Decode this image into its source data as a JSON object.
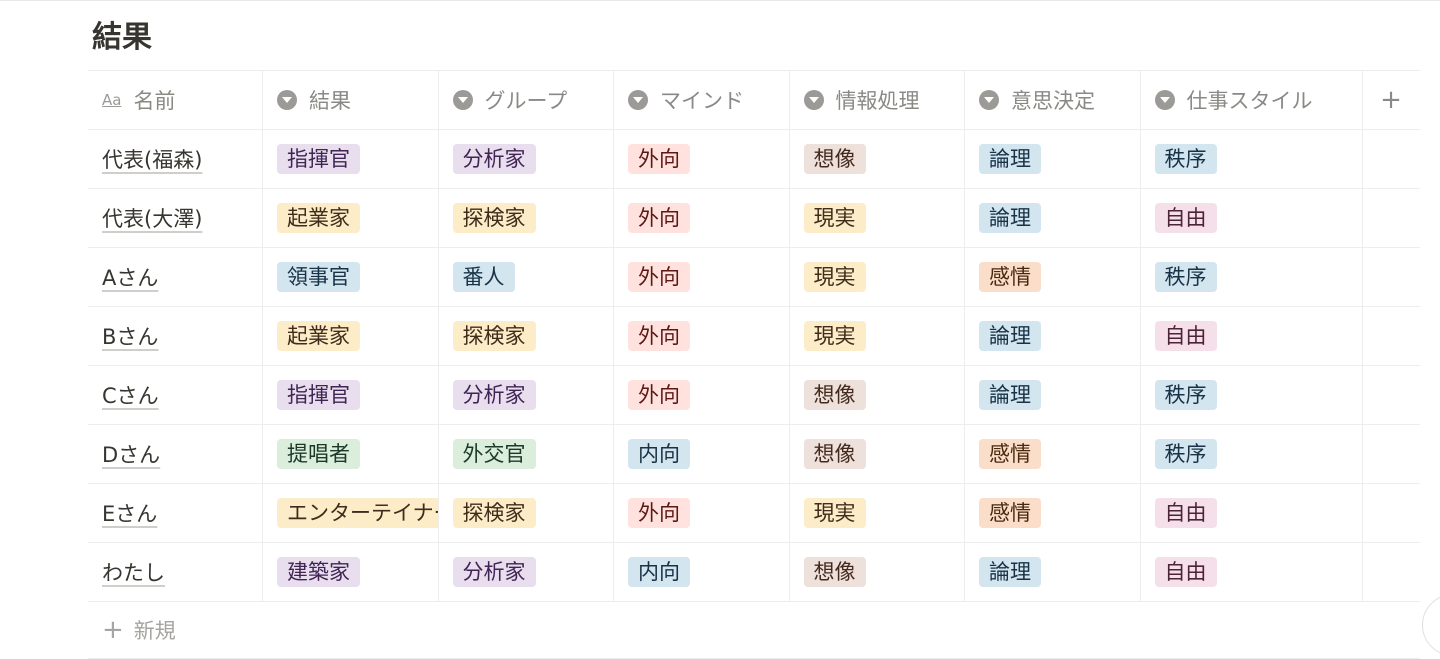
{
  "title": "結果",
  "columns": [
    "名前",
    "結果",
    "グループ",
    "マインド",
    "情報処理",
    "意思決定",
    "仕事スタイル"
  ],
  "add_column": "+",
  "colors": {
    "purple": [
      "#e8deee",
      "#412454"
    ],
    "yellow": [
      "#fdecc8",
      "#402c1b"
    ],
    "blue": [
      "#d3e5ef",
      "#183347"
    ],
    "red": [
      "#ffe2dd",
      "#5d1715"
    ],
    "brown": [
      "#eee0da",
      "#442a1e"
    ],
    "green": [
      "#dbeddb",
      "#1c3829"
    ],
    "orange": [
      "#fadec9",
      "#49290e"
    ],
    "pink": [
      "#f5e0e9",
      "#4c2337"
    ]
  },
  "rows": [
    {
      "name": "代表(福森)",
      "tags": [
        [
          "指揮官",
          "purple"
        ],
        [
          "分析家",
          "purple"
        ],
        [
          "外向",
          "red"
        ],
        [
          "想像",
          "brown"
        ],
        [
          "論理",
          "blue"
        ],
        [
          "秩序",
          "blue"
        ]
      ]
    },
    {
      "name": "代表(大澤)",
      "tags": [
        [
          "起業家",
          "yellow"
        ],
        [
          "探検家",
          "yellow"
        ],
        [
          "外向",
          "red"
        ],
        [
          "現実",
          "yellow"
        ],
        [
          "論理",
          "blue"
        ],
        [
          "自由",
          "pink"
        ]
      ]
    },
    {
      "name": "Aさん",
      "tags": [
        [
          "領事官",
          "blue"
        ],
        [
          "番人",
          "blue"
        ],
        [
          "外向",
          "red"
        ],
        [
          "現実",
          "yellow"
        ],
        [
          "感情",
          "orange"
        ],
        [
          "秩序",
          "blue"
        ]
      ]
    },
    {
      "name": "Bさん",
      "tags": [
        [
          "起業家",
          "yellow"
        ],
        [
          "探検家",
          "yellow"
        ],
        [
          "外向",
          "red"
        ],
        [
          "現実",
          "yellow"
        ],
        [
          "論理",
          "blue"
        ],
        [
          "自由",
          "pink"
        ]
      ]
    },
    {
      "name": "Cさん",
      "tags": [
        [
          "指揮官",
          "purple"
        ],
        [
          "分析家",
          "purple"
        ],
        [
          "外向",
          "red"
        ],
        [
          "想像",
          "brown"
        ],
        [
          "論理",
          "blue"
        ],
        [
          "秩序",
          "blue"
        ]
      ]
    },
    {
      "name": "Dさん",
      "tags": [
        [
          "提唱者",
          "green"
        ],
        [
          "外交官",
          "green"
        ],
        [
          "内向",
          "blue"
        ],
        [
          "想像",
          "brown"
        ],
        [
          "感情",
          "orange"
        ],
        [
          "秩序",
          "blue"
        ]
      ]
    },
    {
      "name": "Eさん",
      "tags": [
        [
          "エンターテイナー",
          "yellow"
        ],
        [
          "探検家",
          "yellow"
        ],
        [
          "外向",
          "red"
        ],
        [
          "現実",
          "yellow"
        ],
        [
          "感情",
          "orange"
        ],
        [
          "自由",
          "pink"
        ]
      ]
    },
    {
      "name": "わたし",
      "tags": [
        [
          "建築家",
          "purple"
        ],
        [
          "分析家",
          "purple"
        ],
        [
          "内向",
          "blue"
        ],
        [
          "想像",
          "brown"
        ],
        [
          "論理",
          "blue"
        ],
        [
          "自由",
          "pink"
        ]
      ]
    }
  ],
  "new_row": {
    "icon": "+",
    "label": "新規"
  }
}
